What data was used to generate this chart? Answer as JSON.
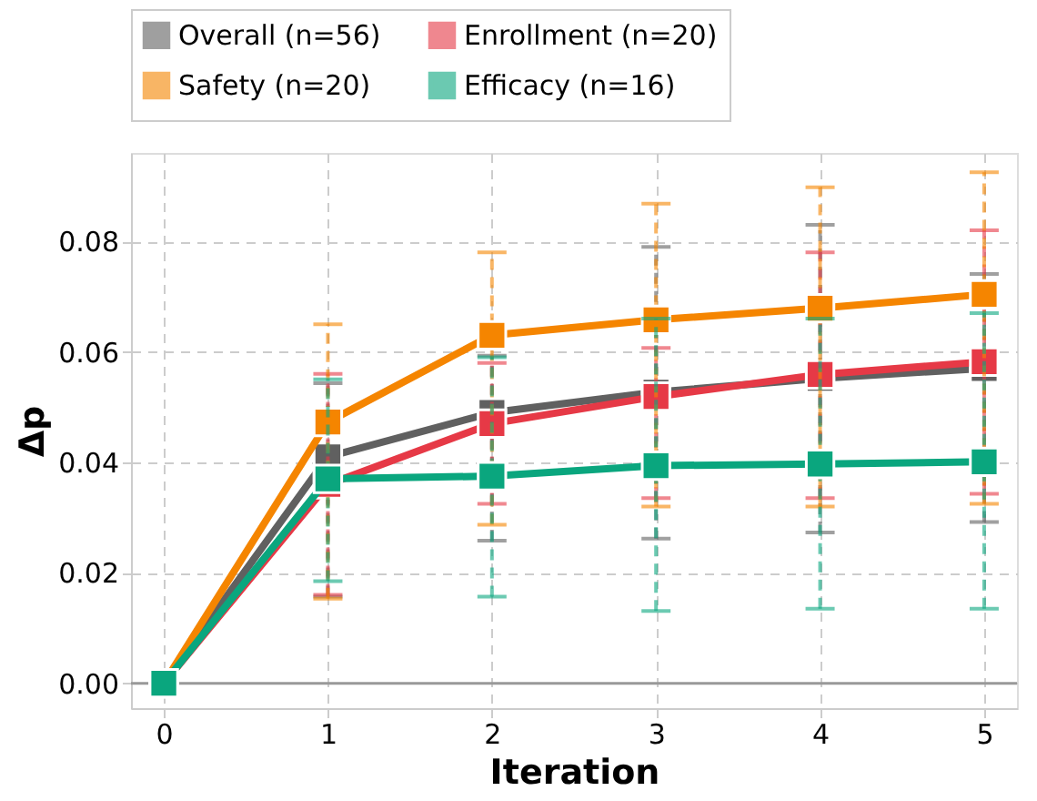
{
  "chart_data": {
    "type": "line",
    "xlabel": "Iteration",
    "ylabel": "Δp",
    "x": [
      0,
      1,
      2,
      3,
      4,
      5
    ],
    "xlim": [
      -0.2,
      5.2
    ],
    "xticks": [
      0,
      1,
      2,
      3,
      4,
      5
    ],
    "ylim": [
      -0.0045,
      0.096
    ],
    "yticks": [
      {
        "value": 0,
        "label": "0.00"
      },
      0.02,
      0.04,
      0.06,
      0.08
    ],
    "grid": true,
    "legend": "top",
    "marker": "square",
    "line_style": "solid",
    "ref_lines": [
      {
        "axis": "y",
        "value": 0,
        "color": "#999999"
      }
    ],
    "series": [
      {
        "name": "Overall (n=56)",
        "color": "#606060",
        "values": [
          0,
          0.041,
          0.049,
          0.0527,
          0.0552,
          0.057
        ],
        "errors": [
          null,
          [
            0.0157,
            0.0543
          ],
          [
            0.0258,
            0.0593
          ],
          [
            0.0262,
            0.079
          ],
          [
            0.0273,
            0.083
          ],
          [
            0.0292,
            0.0741
          ]
        ]
      },
      {
        "name": "Enrollment (n=20)",
        "color": "#e63946",
        "values": [
          0,
          0.036,
          0.047,
          0.0519,
          0.0559,
          0.0582
        ],
        "errors": [
          null,
          [
            0.016,
            0.056
          ],
          [
            0.0325,
            0.058
          ],
          [
            0.0335,
            0.0607
          ],
          [
            0.0335,
            0.078
          ],
          [
            0.0343,
            0.082
          ]
        ]
      },
      {
        "name": "Safety (n=20)",
        "color": "#f58500",
        "values": [
          0,
          0.0473,
          0.063,
          0.0658,
          0.0679,
          0.0704
        ],
        "errors": [
          null,
          [
            0.0153,
            0.065
          ],
          [
            0.0287,
            0.078
          ],
          [
            0.032,
            0.0868
          ],
          [
            0.032,
            0.0898
          ],
          [
            0.0325,
            0.0925
          ]
        ]
      },
      {
        "name": "Efficacy (n=16)",
        "color": "#0aa67e",
        "values": [
          0,
          0.037,
          0.0375,
          0.0394,
          0.0397,
          0.0401
        ],
        "errors": [
          null,
          [
            0.0185,
            0.055
          ],
          [
            0.0157,
            0.059
          ],
          [
            0.0131,
            0.066
          ],
          [
            0.0135,
            0.066
          ],
          [
            0.0135,
            0.067
          ]
        ]
      }
    ]
  }
}
